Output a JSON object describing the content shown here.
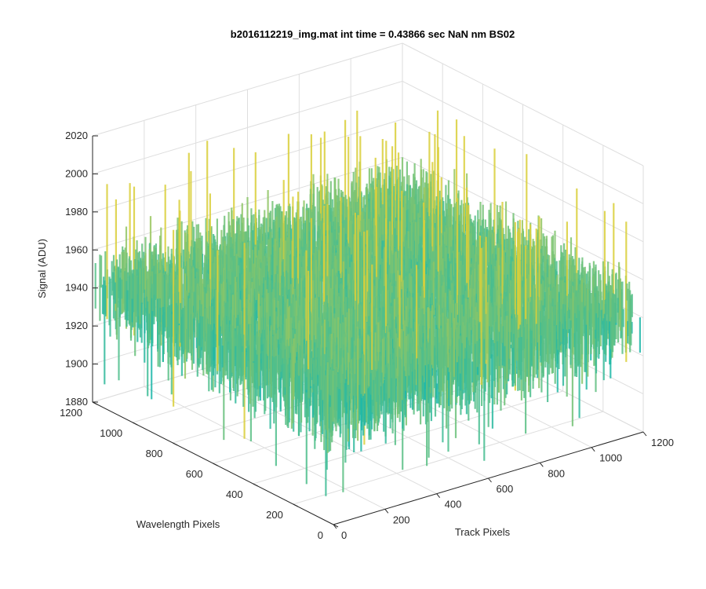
{
  "chart_data": {
    "type": "surface",
    "title": "b2016112219_img.mat int time = 0.43866 sec  NaN nm BS02",
    "xlabel": "Track Pixels",
    "ylabel": "Wavelength Pixels",
    "zlabel": "Signal (ADU)",
    "xlim": [
      0,
      1200
    ],
    "ylim": [
      0,
      1200
    ],
    "zlim": [
      1880,
      2020
    ],
    "x_ticks": [
      "0",
      "200",
      "400",
      "600",
      "800",
      "1000",
      "1200"
    ],
    "y_ticks": [
      "0",
      "200",
      "400",
      "600",
      "800",
      "1000",
      "1200"
    ],
    "z_ticks": [
      "1880",
      "1900",
      "1920",
      "1940",
      "1960",
      "1980",
      "2000",
      "2020"
    ],
    "grid": true,
    "colormap": "parula",
    "colors": {
      "low": "#1f8fd1",
      "mid": "#1fb8a8",
      "high": "#d9cf3a",
      "grid": "#dedede",
      "axis": "#262626"
    },
    "surface_summary": {
      "mean_level": 1940,
      "noise_range": [
        1895,
        1985
      ],
      "spike_max": 2005,
      "dip_min": 1885
    }
  }
}
